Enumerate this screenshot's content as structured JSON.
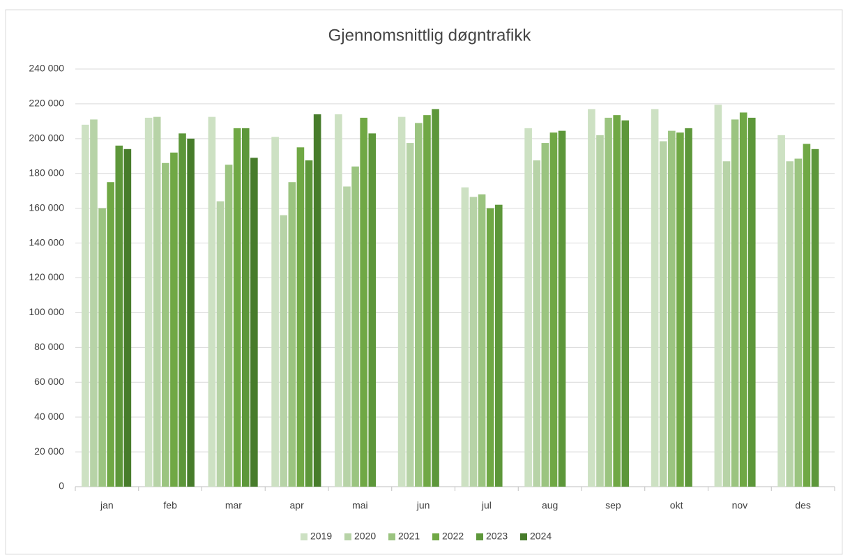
{
  "chart_data": {
    "type": "bar",
    "title": "Gjennomsnittlig døgntrafikk",
    "categories": [
      "jan",
      "feb",
      "mar",
      "apr",
      "mai",
      "jun",
      "jul",
      "aug",
      "sep",
      "okt",
      "nov",
      "des"
    ],
    "series": [
      {
        "name": "2019",
        "color": "#cde1c3",
        "values": [
          208000,
          212000,
          212500,
          201000,
          214000,
          212500,
          172000,
          206000,
          217000,
          217000,
          219500,
          202000
        ]
      },
      {
        "name": "2020",
        "color": "#b7d3a7",
        "values": [
          211000,
          212500,
          164000,
          156000,
          172500,
          197500,
          166500,
          187500,
          202000,
          198500,
          187000,
          187000
        ]
      },
      {
        "name": "2021",
        "color": "#9bc480",
        "values": [
          160000,
          186000,
          185000,
          175000,
          184000,
          209000,
          168000,
          197500,
          212000,
          204500,
          211000,
          188500
        ]
      },
      {
        "name": "2022",
        "color": "#70a845",
        "values": [
          175000,
          192000,
          206000,
          195000,
          212000,
          213500,
          160000,
          203500,
          213500,
          203500,
          215000,
          197000
        ]
      },
      {
        "name": "2023",
        "color": "#5d973a",
        "values": [
          196000,
          203000,
          206000,
          187500,
          203000,
          217000,
          162000,
          204500,
          210500,
          206000,
          212000,
          194000
        ]
      },
      {
        "name": "2024",
        "color": "#477c2b",
        "values": [
          194000,
          200000,
          189000,
          214000,
          null,
          null,
          null,
          null,
          null,
          null,
          null,
          null
        ]
      }
    ],
    "ylim": [
      0,
      240000
    ],
    "yticks": [
      0,
      {
        "value": 20000,
        "label": "20 000"
      },
      {
        "value": 40000,
        "label": "40 000"
      },
      {
        "value": 60000,
        "label": "60 000"
      },
      {
        "value": 80000,
        "label": "80 000"
      },
      {
        "value": 100000,
        "label": "100 000"
      },
      {
        "value": 120000,
        "label": "120 000"
      },
      {
        "value": 140000,
        "label": "140 000"
      },
      {
        "value": 160000,
        "label": "160 000"
      },
      {
        "value": 180000,
        "label": "180 000"
      },
      {
        "value": 200000,
        "label": "200 000"
      },
      {
        "value": 220000,
        "label": "220 000"
      },
      {
        "value": 240000,
        "label": "240 000"
      }
    ],
    "grid": true,
    "legend": "bottom"
  }
}
